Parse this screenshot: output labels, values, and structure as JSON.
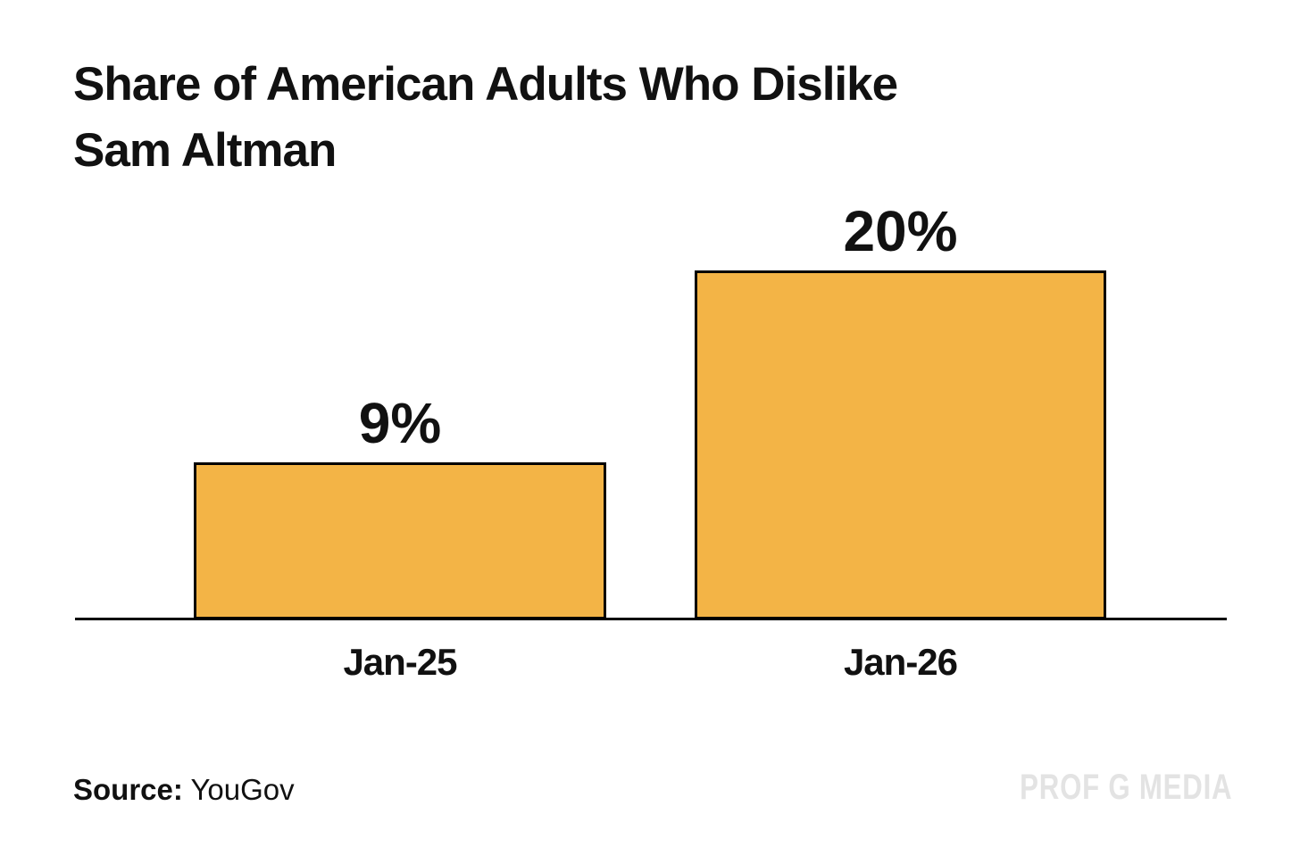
{
  "title_lines": [
    "Share of American Adults Who Dislike",
    "Sam Altman"
  ],
  "source": {
    "label": "Source:",
    "value": "YouGov"
  },
  "watermark": "PROF G MEDIA",
  "colors": {
    "bar_fill": "#F3B446",
    "bar_border": "#000000",
    "axis": "#000000",
    "text": "#111111",
    "watermark": "#E3E3E3",
    "background": "#FFFFFF"
  },
  "chart_data": {
    "type": "bar",
    "title": "Share of American Adults Who Dislike Sam Altman",
    "categories": [
      "Jan-25",
      "Jan-26"
    ],
    "values": [
      9,
      20
    ],
    "value_labels": [
      "9%",
      "20%"
    ],
    "xlabel": "",
    "ylabel": "",
    "ylim": [
      0,
      22
    ],
    "grid": false,
    "legend": false,
    "source": "YouGov"
  }
}
